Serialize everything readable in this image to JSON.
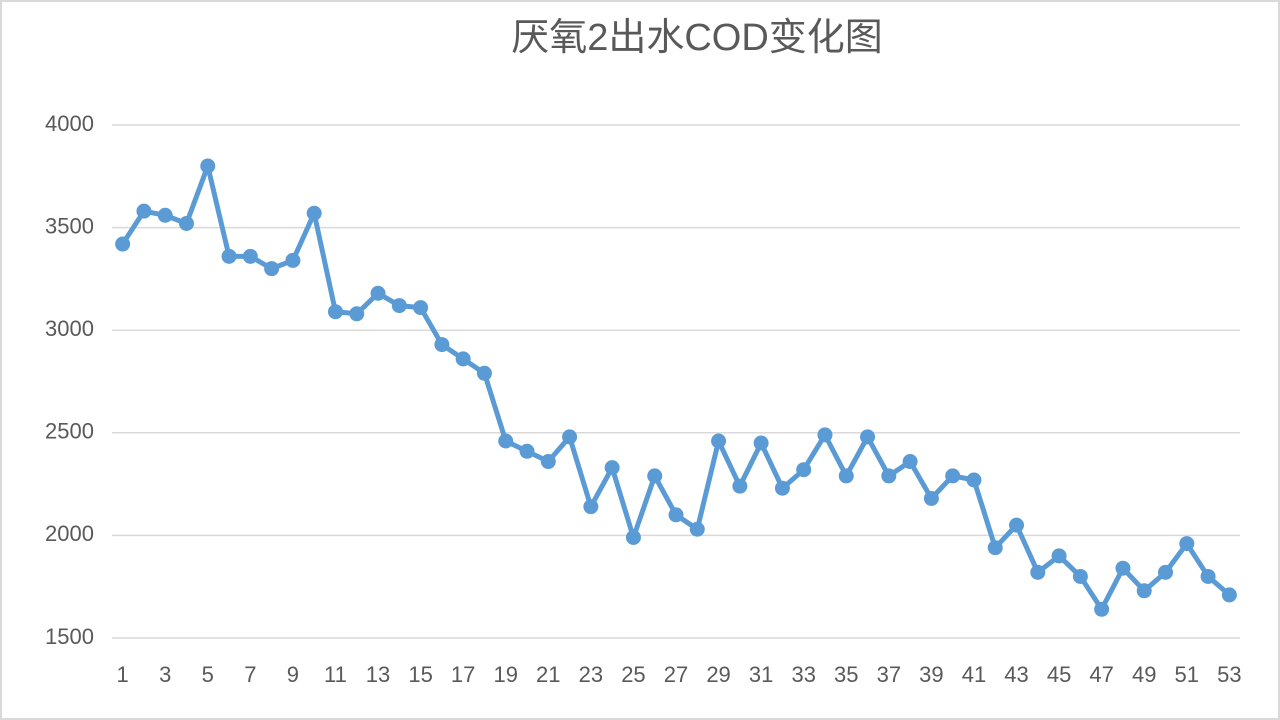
{
  "chart_data": {
    "type": "line",
    "title": "厌氧2出水COD变化图",
    "categories": [
      "1",
      null,
      "3",
      null,
      "5",
      null,
      "7",
      null,
      "9",
      null,
      "11",
      null,
      "13",
      null,
      "15",
      null,
      "17",
      null,
      "19",
      null,
      "21",
      null,
      "23",
      null,
      "25",
      null,
      "27",
      null,
      "29",
      null,
      "31",
      null,
      "33",
      null,
      "35",
      null,
      "37",
      null,
      "39",
      null,
      "41",
      null,
      "43",
      null,
      "45",
      null,
      "47",
      null,
      "49",
      null,
      "51",
      null,
      "53"
    ],
    "values": [
      3420,
      3580,
      3560,
      3520,
      3800,
      3360,
      3360,
      3300,
      3340,
      3570,
      3090,
      3080,
      3180,
      3120,
      3110,
      2930,
      2860,
      2790,
      2460,
      2410,
      2360,
      2480,
      2140,
      2330,
      1990,
      2290,
      2100,
      2030,
      2460,
      2240,
      2450,
      2230,
      2320,
      2490,
      2290,
      2480,
      2290,
      2360,
      2180,
      2290,
      2270,
      1940,
      2050,
      1820,
      1900,
      1800,
      1640,
      1840,
      1730,
      1820,
      1960,
      1800,
      1710
    ],
    "color": "#5b9bd5",
    "ylim": [
      1500,
      4000
    ],
    "yticks": [
      1500,
      2000,
      2500,
      3000,
      3500,
      4000
    ],
    "grid": true
  }
}
